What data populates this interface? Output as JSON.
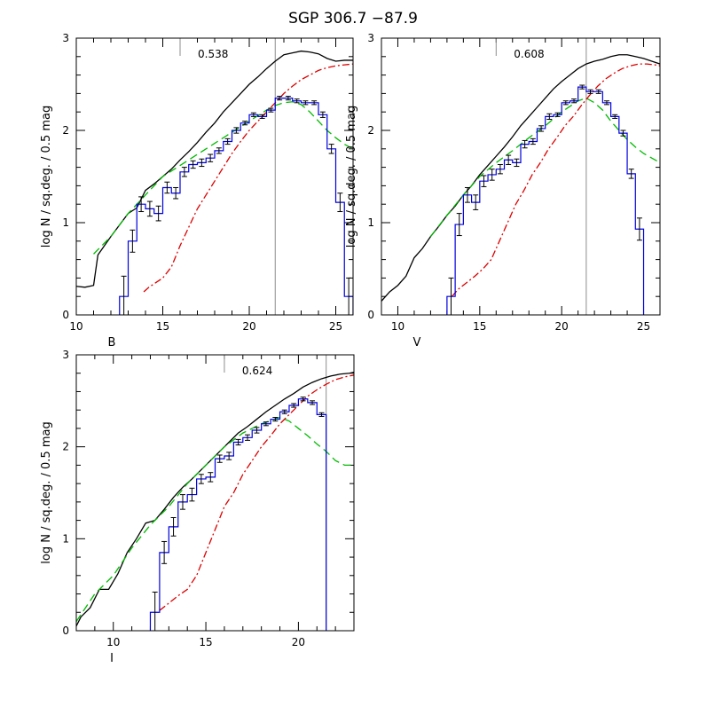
{
  "title": "SGP 306.7 −87.9",
  "chart_data": [
    {
      "type": "line",
      "xlabel": "B",
      "ylabel": "log N / sq.deg. / 0.5 mag",
      "xlim": [
        10,
        26
      ],
      "ylim": [
        0,
        3
      ],
      "xticks": [
        10,
        15,
        20,
        25
      ],
      "yticks": [
        0,
        1,
        2,
        3
      ],
      "annotation": "0.538",
      "annotation_x": 16.0,
      "vline_x": 21.5,
      "colors": {
        "model_total": "#000000",
        "model_green": "#00bb00",
        "model_red": "#dd0000",
        "observed": "#0000dd"
      },
      "series": [
        {
          "style": "solid",
          "color": "#000000",
          "x": [
            10,
            10.5,
            11,
            11.25,
            12,
            13,
            13.5,
            14,
            14.5,
            15,
            15.5,
            16,
            16.5,
            17,
            17.5,
            18,
            18.5,
            19,
            19.5,
            20,
            20.5,
            21,
            21.5,
            22,
            22.5,
            23,
            23.5,
            24,
            24.5,
            25,
            25.5,
            26
          ],
          "y": [
            0.31,
            0.3,
            0.32,
            0.65,
            0.85,
            1.1,
            1.16,
            1.35,
            1.42,
            1.5,
            1.58,
            1.68,
            1.77,
            1.87,
            1.98,
            2.08,
            2.2,
            2.3,
            2.4,
            2.5,
            2.58,
            2.67,
            2.75,
            2.82,
            2.84,
            2.86,
            2.85,
            2.83,
            2.78,
            2.75,
            2.76,
            2.76
          ]
        },
        {
          "style": "dashed",
          "color": "#00bb00",
          "x": [
            11,
            12,
            13,
            14,
            15,
            16,
            17,
            18,
            19,
            20,
            21,
            21.5,
            22,
            22.5,
            23,
            23.5,
            24,
            24.5,
            25,
            25.5,
            26
          ],
          "y": [
            0.66,
            0.85,
            1.1,
            1.3,
            1.5,
            1.62,
            1.74,
            1.86,
            1.98,
            2.1,
            2.22,
            2.27,
            2.3,
            2.31,
            2.28,
            2.2,
            2.1,
            2.0,
            1.92,
            1.85,
            1.8
          ]
        },
        {
          "style": "dashdot",
          "color": "#dd0000",
          "x": [
            13.9,
            14.2,
            14.6,
            15,
            15.5,
            16,
            16.5,
            17,
            17.5,
            18,
            18.5,
            19,
            19.5,
            20,
            20.5,
            21,
            21.5,
            22,
            22.5,
            23,
            23.5,
            24,
            24.5,
            25,
            25.5,
            26
          ],
          "y": [
            0.25,
            0.3,
            0.35,
            0.4,
            0.52,
            0.75,
            0.95,
            1.15,
            1.3,
            1.45,
            1.6,
            1.75,
            1.88,
            2.0,
            2.1,
            2.2,
            2.3,
            2.4,
            2.48,
            2.55,
            2.6,
            2.65,
            2.68,
            2.7,
            2.71,
            2.72
          ]
        },
        {
          "style": "step",
          "color": "#0000dd",
          "x": [
            12.75,
            13.25,
            13.75,
            14.25,
            14.75,
            15.25,
            15.75,
            16.25,
            16.75,
            17.25,
            17.75,
            18.25,
            18.75,
            19.25,
            19.75,
            20.25,
            20.75,
            21.25,
            21.75,
            22.25,
            22.75,
            23.25,
            23.75,
            24.25,
            24.75,
            25.25,
            25.75
          ],
          "y": [
            0.2,
            0.8,
            1.2,
            1.15,
            1.1,
            1.38,
            1.32,
            1.55,
            1.63,
            1.65,
            1.7,
            1.78,
            1.88,
            2.0,
            2.08,
            2.17,
            2.15,
            2.22,
            2.35,
            2.35,
            2.32,
            2.3,
            2.3,
            2.17,
            1.8,
            1.22,
            0.2
          ],
          "err": [
            0.22,
            0.12,
            0.08,
            0.08,
            0.08,
            0.06,
            0.06,
            0.05,
            0.04,
            0.04,
            0.04,
            0.03,
            0.03,
            0.03,
            0.02,
            0.02,
            0.02,
            0.02,
            0.02,
            0.02,
            0.02,
            0.02,
            0.02,
            0.03,
            0.05,
            0.1,
            0.2
          ]
        }
      ]
    },
    {
      "type": "line",
      "xlabel": "V",
      "ylabel": "log N / sq.deg. / 0.5 mag",
      "xlim": [
        9,
        26
      ],
      "ylim": [
        0,
        3
      ],
      "xticks": [
        10,
        15,
        20,
        25
      ],
      "yticks": [
        0,
        1,
        2,
        3
      ],
      "annotation": "0.608",
      "annotation_x": 16.0,
      "vline_x": 21.5,
      "colors": {
        "model_total": "#000000",
        "model_green": "#00bb00",
        "model_red": "#dd0000",
        "observed": "#0000dd"
      },
      "series": [
        {
          "style": "solid",
          "color": "#000000",
          "x": [
            9,
            9.5,
            10,
            10.5,
            11,
            11.5,
            12,
            12.5,
            13,
            13.5,
            14,
            14.5,
            15,
            15.5,
            16,
            16.5,
            17,
            17.5,
            18,
            18.5,
            19,
            19.5,
            20,
            20.5,
            21,
            21.5,
            22,
            22.5,
            23,
            23.5,
            24,
            24.5,
            25,
            25.5,
            26
          ],
          "y": [
            0.15,
            0.25,
            0.32,
            0.42,
            0.62,
            0.72,
            0.85,
            0.96,
            1.08,
            1.18,
            1.3,
            1.4,
            1.52,
            1.62,
            1.72,
            1.82,
            1.93,
            2.05,
            2.15,
            2.25,
            2.35,
            2.45,
            2.53,
            2.6,
            2.67,
            2.72,
            2.75,
            2.77,
            2.8,
            2.82,
            2.82,
            2.8,
            2.78,
            2.75,
            2.72
          ]
        },
        {
          "style": "dashed",
          "color": "#00bb00",
          "x": [
            12,
            13,
            14,
            15,
            16,
            17,
            18,
            19,
            20,
            21,
            21.5,
            22,
            22.5,
            23,
            23.5,
            24,
            24.5,
            25,
            25.5,
            26
          ],
          "y": [
            0.85,
            1.08,
            1.3,
            1.5,
            1.65,
            1.78,
            1.92,
            2.05,
            2.2,
            2.32,
            2.35,
            2.3,
            2.22,
            2.1,
            2.0,
            1.9,
            1.82,
            1.75,
            1.7,
            1.65
          ]
        },
        {
          "style": "dashdot",
          "color": "#dd0000",
          "x": [
            13.3,
            13.7,
            14.2,
            14.7,
            15.2,
            15.7,
            16.2,
            16.7,
            17.2,
            17.7,
            18.2,
            18.7,
            19.2,
            19.7,
            20.2,
            20.7,
            21.2,
            21.7,
            22.2,
            22.7,
            23.2,
            23.7,
            24.2,
            24.7,
            25.2,
            25.7,
            26
          ],
          "y": [
            0.2,
            0.28,
            0.35,
            0.42,
            0.5,
            0.6,
            0.8,
            1.0,
            1.2,
            1.35,
            1.52,
            1.65,
            1.8,
            1.92,
            2.05,
            2.15,
            2.27,
            2.38,
            2.48,
            2.56,
            2.62,
            2.67,
            2.7,
            2.72,
            2.72,
            2.71,
            2.7
          ]
        },
        {
          "style": "step",
          "color": "#0000dd",
          "x": [
            13.25,
            13.75,
            14.25,
            14.75,
            15.25,
            15.75,
            16.25,
            16.75,
            17.25,
            17.75,
            18.25,
            18.75,
            19.25,
            19.75,
            20.25,
            20.75,
            21.25,
            21.75,
            22.25,
            22.75,
            23.25,
            23.75,
            24.25,
            24.75
          ],
          "y": [
            0.2,
            0.98,
            1.3,
            1.22,
            1.45,
            1.52,
            1.58,
            1.68,
            1.65,
            1.85,
            1.88,
            2.02,
            2.15,
            2.17,
            2.3,
            2.32,
            2.47,
            2.42,
            2.42,
            2.3,
            2.15,
            1.97,
            1.53,
            0.93
          ],
          "err": [
            0.2,
            0.12,
            0.08,
            0.08,
            0.06,
            0.06,
            0.05,
            0.05,
            0.04,
            0.04,
            0.03,
            0.03,
            0.03,
            0.02,
            0.02,
            0.02,
            0.02,
            0.02,
            0.02,
            0.02,
            0.02,
            0.03,
            0.05,
            0.12
          ]
        }
      ]
    },
    {
      "type": "line",
      "xlabel": "I",
      "ylabel": "log N / sq.deg. / 0.5 mag",
      "xlim": [
        8,
        23
      ],
      "ylim": [
        0,
        3
      ],
      "xticks": [
        10,
        15,
        20
      ],
      "yticks": [
        0,
        1,
        2,
        3
      ],
      "annotation": "0.624",
      "annotation_x": 16.0,
      "vline_x": 21.5,
      "colors": {
        "model_total": "#000000",
        "model_green": "#00bb00",
        "model_red": "#dd0000",
        "observed": "#0000dd"
      },
      "series": [
        {
          "style": "solid",
          "color": "#000000",
          "x": [
            8,
            8.25,
            8.75,
            9.25,
            9.75,
            10.25,
            10.75,
            11.25,
            11.75,
            12.25,
            12.75,
            13.25,
            13.75,
            14.25,
            14.75,
            15.25,
            15.75,
            16.25,
            16.75,
            17.25,
            17.75,
            18.25,
            18.75,
            19.25,
            19.75,
            20.25,
            20.75,
            21.25,
            21.75,
            22.25,
            22.75,
            23
          ],
          "y": [
            0.05,
            0.15,
            0.25,
            0.45,
            0.45,
            0.62,
            0.85,
            1.0,
            1.17,
            1.2,
            1.32,
            1.45,
            1.56,
            1.65,
            1.75,
            1.85,
            1.95,
            2.05,
            2.15,
            2.22,
            2.3,
            2.38,
            2.45,
            2.52,
            2.58,
            2.65,
            2.7,
            2.74,
            2.77,
            2.79,
            2.8,
            2.81
          ]
        },
        {
          "style": "dashed",
          "color": "#00bb00",
          "x": [
            8,
            9,
            10,
            11,
            12,
            13,
            14,
            15,
            16,
            17,
            18,
            19,
            19.5,
            20,
            20.5,
            21,
            21.5,
            22,
            22.5,
            23
          ],
          "y": [
            0.1,
            0.4,
            0.6,
            0.9,
            1.15,
            1.35,
            1.6,
            1.8,
            2.0,
            2.15,
            2.25,
            2.32,
            2.28,
            2.2,
            2.12,
            2.03,
            1.95,
            1.85,
            1.8,
            1.8
          ]
        },
        {
          "style": "dashdot",
          "color": "#dd0000",
          "x": [
            12.5,
            13,
            13.5,
            14,
            14.5,
            15,
            15.5,
            16,
            16.5,
            17,
            17.5,
            18,
            18.5,
            19,
            19.5,
            20,
            20.5,
            21,
            21.5,
            22,
            22.5,
            23
          ],
          "y": [
            0.22,
            0.3,
            0.38,
            0.45,
            0.6,
            0.85,
            1.1,
            1.35,
            1.5,
            1.7,
            1.85,
            2.0,
            2.12,
            2.25,
            2.35,
            2.45,
            2.55,
            2.62,
            2.68,
            2.73,
            2.76,
            2.78
          ]
        },
        {
          "style": "step",
          "color": "#0000dd",
          "x": [
            12.25,
            12.75,
            13.25,
            13.75,
            14.25,
            14.75,
            15.25,
            15.75,
            16.25,
            16.75,
            17.25,
            17.75,
            18.25,
            18.75,
            19.25,
            19.75,
            20.25,
            20.75,
            21.25
          ],
          "y": [
            0.2,
            0.85,
            1.13,
            1.4,
            1.48,
            1.65,
            1.67,
            1.87,
            1.9,
            2.05,
            2.1,
            2.18,
            2.25,
            2.3,
            2.38,
            2.45,
            2.52,
            2.48,
            2.35
          ],
          "err": [
            0.22,
            0.12,
            0.1,
            0.08,
            0.07,
            0.05,
            0.05,
            0.04,
            0.04,
            0.03,
            0.03,
            0.03,
            0.02,
            0.02,
            0.02,
            0.02,
            0.02,
            0.02,
            0.02
          ]
        }
      ]
    }
  ]
}
